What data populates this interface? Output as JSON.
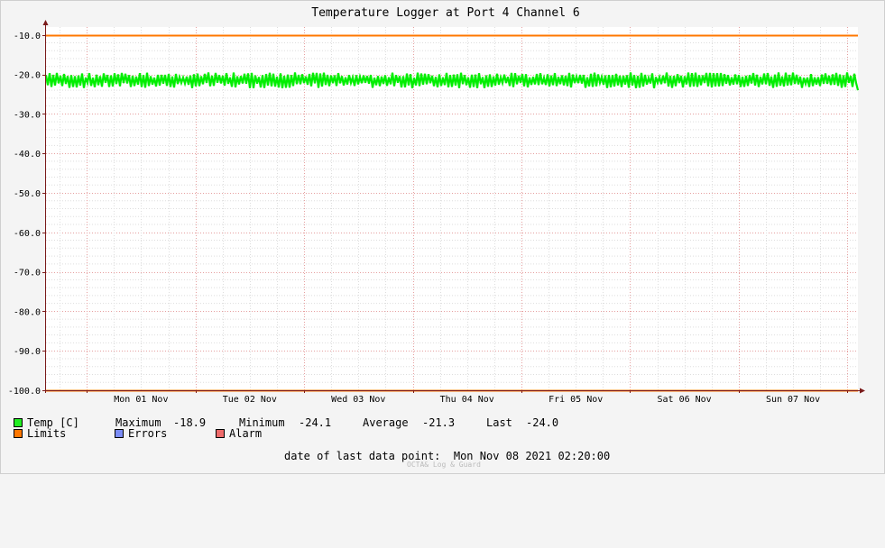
{
  "chart_data": {
    "type": "line",
    "title": "Temperature Logger at Port 4 Channel 6",
    "y_ticks": [
      "-10.0",
      "-20.0",
      "-30.0",
      "-40.0",
      "-50.0",
      "-60.0",
      "-70.0",
      "-80.0",
      "-90.0",
      "-100.0"
    ],
    "ylim": [
      -100,
      -8
    ],
    "x_tick_labels": [
      "Mon 01 Nov",
      "Tue 02 Nov",
      "Wed 03 Nov",
      "Thu 04 Nov",
      "Fri 05 Nov",
      "Sat 06 Nov",
      "Sun 07 Nov"
    ],
    "xlim": [
      "2021-10-31 15:00",
      "2021-11-08 02:20"
    ],
    "grid": true,
    "series": [
      {
        "name": "Temp [C]",
        "color": "#00ee00",
        "x_start": "2021-10-31 15:00",
        "x_end": "2021-11-08 02:20",
        "min": -24.1,
        "max": -18.9,
        "typical_range": [
          -23.5,
          -19.5
        ]
      },
      {
        "name": "Limits",
        "color": "#ff7700",
        "values": [
          -10.0,
          -100.0
        ]
      }
    ]
  },
  "legend": {
    "temp": {
      "label": "Temp [C]",
      "color": "#22ee22"
    },
    "max_label": "Maximum",
    "max_value": "-18.9",
    "min_label": "Minimum",
    "min_value": "-24.1",
    "avg_label": "Average",
    "avg_value": "-21.3",
    "last_label": "Last",
    "last_value": "-24.0",
    "limits": {
      "label": "Limits",
      "color": "#ff7700"
    },
    "errors": {
      "label": "Errors",
      "color": "#7b8cf5"
    },
    "alarm": {
      "label": "Alarm",
      "color": "#ee6a6a"
    }
  },
  "footer": {
    "date_label": "date of last data point:",
    "date_value": "Mon Nov 08 2021 02:20:00",
    "credit": "OCTA& Log & Guard"
  }
}
